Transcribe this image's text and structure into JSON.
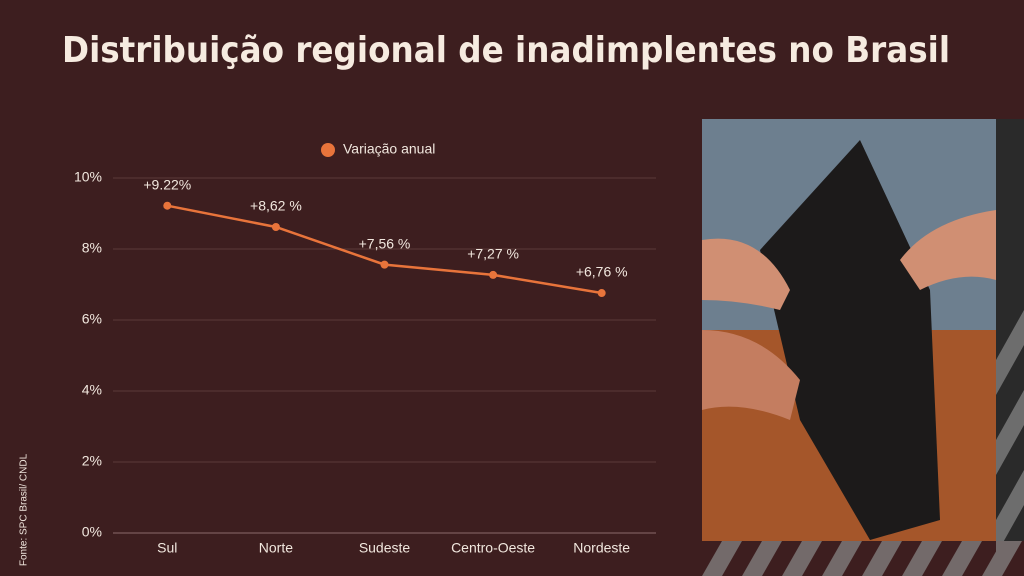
{
  "chart_data": {
    "type": "line",
    "title": "Distribuição regional de inadimplentes no Brasil",
    "source": "Fonte: SPC Brasil/ CNDL",
    "categories": [
      "Sul",
      "Norte",
      "Sudeste",
      "Centro-Oeste",
      "Nordeste"
    ],
    "series": [
      {
        "name": "Variação anual",
        "color": "#e8743b",
        "values": [
          9.22,
          8.62,
          7.56,
          7.27,
          6.76
        ],
        "value_labels": [
          "+9.22%",
          "+8,62 %",
          "+7,56 %",
          "+7,27 %",
          "+6,76 %"
        ]
      }
    ],
    "ylim": [
      0,
      10
    ],
    "yticks": [
      {
        "value": 0,
        "label": "0%"
      },
      {
        "value": 2,
        "label": "2%"
      },
      {
        "value": 4,
        "label": "4%"
      },
      {
        "value": 6,
        "label": "6%"
      },
      {
        "value": 8,
        "label": "8%"
      },
      {
        "value": 10,
        "label": "10%"
      }
    ],
    "grid": true,
    "legend": "top"
  }
}
